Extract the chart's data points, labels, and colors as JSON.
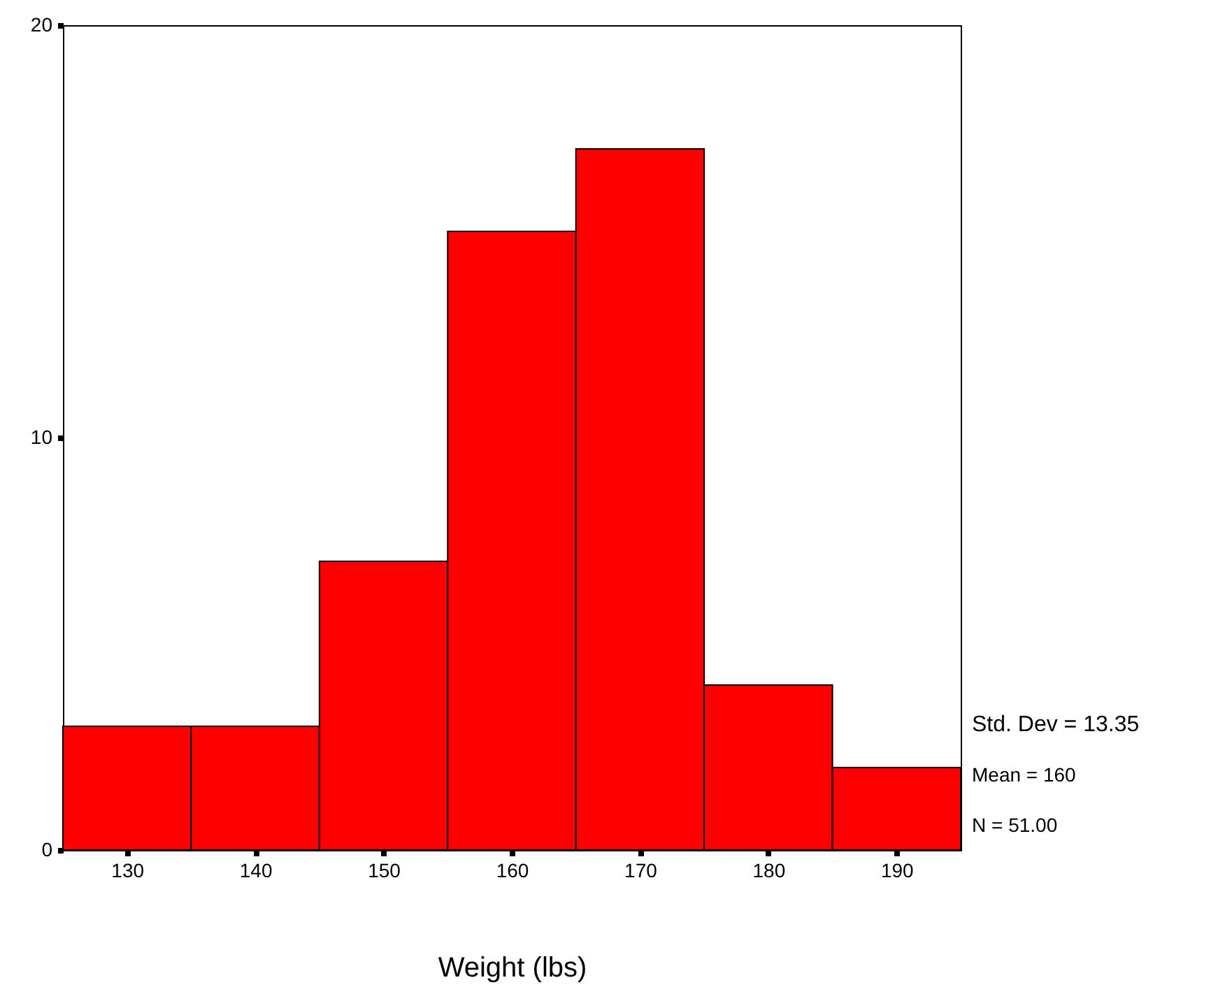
{
  "chart_data": {
    "type": "histogram",
    "xlabel": "Weight (lbs)",
    "bins": [
      125,
      135,
      145,
      155,
      165,
      175,
      185,
      195
    ],
    "values": [
      3,
      3,
      7,
      15,
      17,
      4,
      2
    ],
    "color": "#ff0000",
    "xlim": [
      125,
      195
    ],
    "xticks": [
      130,
      140,
      150,
      160,
      170,
      180,
      190
    ],
    "ylim": [
      0,
      20
    ],
    "yticks": [
      0,
      10,
      20
    ],
    "grid": false,
    "annotations": [
      "Std. Dev = 13.35",
      "Mean = 160",
      "N = 51.00"
    ]
  }
}
